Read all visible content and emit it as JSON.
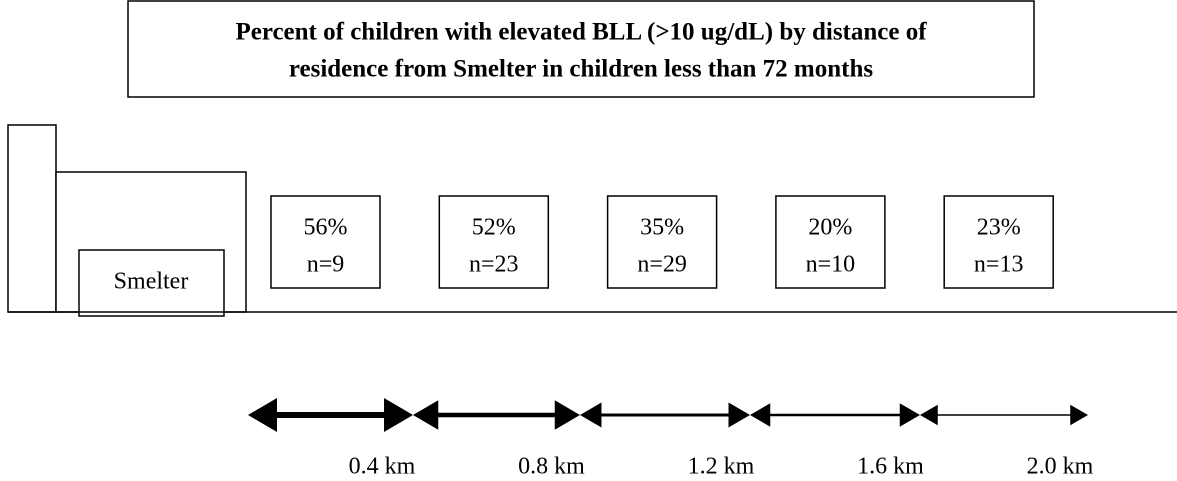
{
  "title": [
    "Percent of children with elevated BLL (>10 ug/dL) by distance of",
    "residence from Smelter in children less than 72 months"
  ],
  "source_label": "Smelter",
  "zones": [
    {
      "percent": "56%",
      "n": "n=9"
    },
    {
      "percent": "52%",
      "n": "n=23"
    },
    {
      "percent": "35%",
      "n": "n=29"
    },
    {
      "percent": "20%",
      "n": "n=10"
    },
    {
      "percent": "23%",
      "n": "n=13"
    }
  ],
  "distances": [
    "0.4 km",
    "0.8 km",
    "1.2 km",
    "1.6 km",
    "2.0 km"
  ]
}
